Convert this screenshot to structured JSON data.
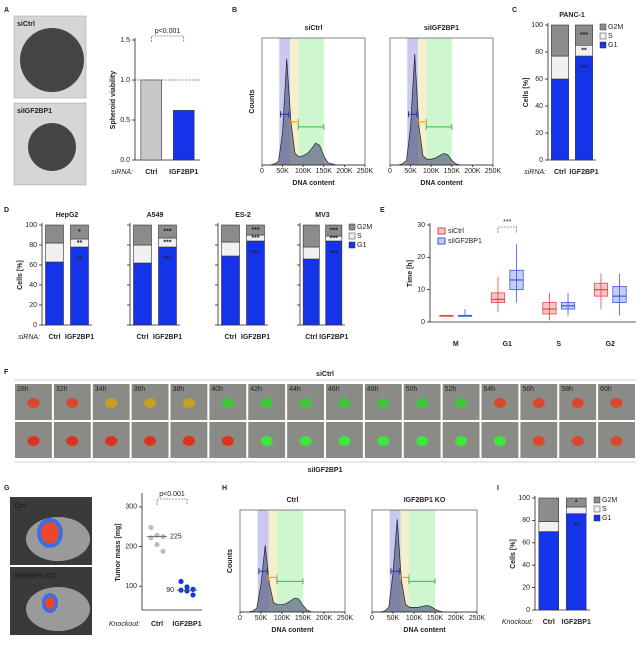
{
  "panel_letters": [
    "A",
    "B",
    "C",
    "D",
    "E",
    "F",
    "G",
    "H",
    "I"
  ],
  "images": {
    "spheroids": [
      "siCtrl",
      "siIGF2BP1"
    ],
    "tumors": [
      "Ctrl",
      "IGF2BP1 KO"
    ]
  },
  "timelapse": {
    "rows": [
      "siCtrl",
      "siIGF2BP1"
    ],
    "times": [
      "28h",
      "32h",
      "34h",
      "36h",
      "38h",
      "40h",
      "42h",
      "44h",
      "46h",
      "48h",
      "50h",
      "52h",
      "54h",
      "56h",
      "58h",
      "60h"
    ]
  },
  "chart_data": [
    {
      "type": "bar",
      "ylabel": "Spheroid viability",
      "xlabel": "siRNA:",
      "categories": [
        "Ctrl",
        "IGF2BP1"
      ],
      "values": [
        1.0,
        0.62
      ],
      "colors": [
        "#c8c8c8",
        "#1533e8"
      ],
      "ylim": [
        0,
        1.5
      ],
      "yticks": [
        {
          "value": 0,
          "label": "0.0"
        },
        {
          "value": 0.5,
          "label": "0.5"
        },
        {
          "value": 1,
          "label": "1.0"
        },
        {
          "value": 1.5,
          "label": "1.5"
        }
      ],
      "refline": 1,
      "annotation": "p<0.001"
    },
    {
      "type": "area",
      "title": "siCtrl",
      "ylabel": "Counts",
      "xlabel": "DNA content",
      "color": "#5d6285",
      "x": [
        0,
        10000,
        20000,
        30000,
        40000,
        50000,
        60000,
        70000,
        80000,
        90000,
        100000,
        110000,
        120000,
        130000,
        140000,
        150000,
        160000,
        170000,
        180000,
        190000,
        200000,
        210000,
        220000,
        230000,
        240000,
        250000
      ],
      "values": [
        0,
        0,
        0,
        1,
        3,
        28,
        92,
        38,
        10,
        7,
        8,
        10,
        14,
        19,
        17,
        8,
        2,
        1,
        0,
        0,
        0,
        0,
        0,
        0,
        0,
        0
      ],
      "xlim": [
        0,
        250000
      ],
      "ylim": [
        0,
        110
      ],
      "xticks": [
        0,
        {
          "value": 50000,
          "label": "50K"
        },
        {
          "value": 100000,
          "label": "100K"
        },
        {
          "value": 150000,
          "label": "150K"
        },
        {
          "value": 200000,
          "label": "200K"
        },
        {
          "value": 250000,
          "label": "250K"
        }
      ]
    },
    {
      "type": "area",
      "title": "siIGF2BP1",
      "xlabel": "DNA content",
      "color": "#5d6285",
      "x": [
        0,
        10000,
        20000,
        30000,
        40000,
        50000,
        60000,
        70000,
        80000,
        90000,
        100000,
        110000,
        120000,
        130000,
        140000,
        150000,
        160000,
        170000,
        180000,
        190000,
        200000,
        210000,
        220000,
        230000,
        240000,
        250000
      ],
      "values": [
        0,
        0,
        0,
        1,
        4,
        33,
        96,
        34,
        8,
        5,
        5,
        6,
        8,
        10,
        9,
        4,
        1,
        0,
        0,
        0,
        0,
        0,
        0,
        0,
        0,
        0
      ],
      "xlim": [
        0,
        250000
      ],
      "ylim": [
        0,
        110
      ],
      "xticks": [
        0,
        {
          "value": 50000,
          "label": "50K"
        },
        {
          "value": 100000,
          "label": "100K"
        },
        {
          "value": 150000,
          "label": "150K"
        },
        {
          "value": 200000,
          "label": "200K"
        },
        {
          "value": 250000,
          "label": "250K"
        }
      ]
    },
    {
      "type": "stacked_bar",
      "title": "PANC-1",
      "ylabel": "Cells [%]",
      "xlabel": "siRNA:",
      "legend": true,
      "categories": [
        "Ctrl",
        "IGF2BP1"
      ],
      "series": [
        {
          "name": "G1",
          "color": "#1533e8",
          "values": [
            60,
            77
          ],
          "stars": [
            null,
            "***"
          ]
        },
        {
          "name": "S",
          "color": "#f0f0f0",
          "values": [
            17,
            8
          ],
          "stars": [
            null,
            "**"
          ]
        },
        {
          "name": "G2M",
          "color": "#8c8c8c",
          "values": [
            23,
            15
          ],
          "stars": [
            null,
            "***"
          ]
        }
      ],
      "ylim": [
        0,
        100
      ],
      "yticks": [
        0,
        20,
        40,
        60,
        80,
        100
      ]
    },
    {
      "type": "stacked_bar",
      "title": "HepG2",
      "ylabel": "Cells [%]",
      "xlabel": "siRNA:",
      "categories": [
        "Ctrl",
        "IGF2BP1"
      ],
      "series": [
        {
          "name": "G1",
          "color": "#1533e8",
          "values": [
            63,
            78
          ],
          "stars": [
            null,
            "**"
          ]
        },
        {
          "name": "S",
          "color": "#f0f0f0",
          "values": [
            19,
            8
          ],
          "stars": [
            null,
            "**"
          ]
        },
        {
          "name": "G2M",
          "color": "#8c8c8c",
          "values": [
            18,
            14
          ],
          "stars": [
            null,
            "*"
          ]
        }
      ],
      "ylim": [
        0,
        100
      ],
      "yticks": [
        0,
        20,
        40,
        60,
        80,
        100
      ]
    },
    {
      "type": "stacked_bar",
      "title": "A549",
      "ytick_labels": false,
      "categories": [
        "Ctrl",
        "IGF2BP1"
      ],
      "series": [
        {
          "name": "G1",
          "color": "#1533e8",
          "values": [
            62,
            78
          ],
          "stars": [
            null,
            "***"
          ]
        },
        {
          "name": "S",
          "color": "#f0f0f0",
          "values": [
            18,
            9
          ],
          "stars": [
            null,
            "***"
          ]
        },
        {
          "name": "G2M",
          "color": "#8c8c8c",
          "values": [
            20,
            13
          ],
          "stars": [
            null,
            "***"
          ]
        }
      ],
      "ylim": [
        0,
        100
      ],
      "yticks": [
        0,
        20,
        40,
        60,
        80,
        100
      ]
    },
    {
      "type": "stacked_bar",
      "title": "ES-2",
      "ytick_labels": false,
      "categories": [
        "Ctrl",
        "IGF2BP1"
      ],
      "series": [
        {
          "name": "G1",
          "color": "#1533e8",
          "values": [
            69,
            84
          ],
          "stars": [
            null,
            "***"
          ]
        },
        {
          "name": "S",
          "color": "#f0f0f0",
          "values": [
            14,
            6
          ],
          "stars": [
            null,
            "***"
          ]
        },
        {
          "name": "G2M",
          "color": "#8c8c8c",
          "values": [
            17,
            10
          ],
          "stars": [
            null,
            "***"
          ]
        }
      ],
      "ylim": [
        0,
        100
      ],
      "yticks": [
        0,
        20,
        40,
        60,
        80,
        100
      ]
    },
    {
      "type": "stacked_bar",
      "title": "MV3",
      "ytick_labels": false,
      "legend": true,
      "categories": [
        "Ctrl",
        "IGF2BP1"
      ],
      "series": [
        {
          "name": "G1",
          "color": "#1533e8",
          "values": [
            66,
            84
          ],
          "stars": [
            null,
            "***"
          ]
        },
        {
          "name": "S",
          "color": "#f0f0f0",
          "values": [
            12,
            5
          ],
          "stars": [
            null,
            "***"
          ]
        },
        {
          "name": "G2M",
          "color": "#8c8c8c",
          "values": [
            22,
            11
          ],
          "stars": [
            null,
            "***"
          ]
        }
      ],
      "ylim": [
        0,
        100
      ],
      "yticks": [
        0,
        20,
        40,
        60,
        80,
        100
      ]
    },
    {
      "type": "box",
      "ylabel": "Time [h]",
      "categories": [
        "M",
        "G1",
        "S",
        "G2"
      ],
      "series": [
        {
          "name": "siCtrl",
          "color": "#e2474a",
          "stats": [
            [
              2,
              2,
              2,
              2,
              2
            ],
            [
              3,
              6,
              7,
              9,
              14
            ],
            [
              0.5,
              2.5,
              4,
              6,
              9
            ],
            [
              4,
              8,
              10,
              12,
              15
            ]
          ]
        },
        {
          "name": "siIGF2BP1",
          "color": "#3a5be0",
          "stats": [
            [
              2,
              2,
              2,
              2,
              4
            ],
            [
              6,
              10,
              13,
              16,
              24
            ],
            [
              2,
              4,
              5,
              6,
              9
            ],
            [
              2,
              6,
              8,
              11,
              15
            ]
          ]
        }
      ],
      "ylim": [
        0,
        30
      ],
      "yticks": [
        0,
        10,
        20,
        30
      ],
      "annotation": "***"
    },
    {
      "type": "strip",
      "ylabel": "Tumor mass [mg]",
      "xlabel": "Knockout:",
      "categories": [
        "Ctrl",
        "IGF2BP1"
      ],
      "colors": [
        "#bdbdbd",
        "#1533e8"
      ],
      "points": [
        [
          248,
          228,
          225,
          222,
          205,
          188
        ],
        [
          112,
          98,
          92,
          90,
          88,
          78
        ]
      ],
      "values": [
        225,
        90
      ],
      "ylim": [
        40,
        330
      ],
      "yticks": [
        100,
        200,
        300
      ],
      "annotation": "p<0.001"
    },
    {
      "type": "area",
      "title": "Ctrl",
      "ylabel": "Counts",
      "xlabel": "DNA content",
      "color": "#5d6285",
      "x": [
        0,
        10000,
        20000,
        30000,
        40000,
        50000,
        60000,
        70000,
        80000,
        90000,
        100000,
        110000,
        120000,
        130000,
        140000,
        150000,
        160000,
        170000,
        180000,
        190000,
        200000,
        210000,
        220000,
        230000,
        240000,
        250000
      ],
      "values": [
        0,
        0,
        0,
        1,
        4,
        30,
        72,
        30,
        10,
        8,
        8,
        9,
        12,
        15,
        14,
        7,
        2,
        0,
        0,
        0,
        0,
        0,
        0,
        0,
        0,
        0
      ],
      "xlim": [
        0,
        250000
      ],
      "ylim": [
        0,
        110
      ],
      "xticks": [
        0,
        {
          "value": 50000,
          "label": "50K"
        },
        {
          "value": 100000,
          "label": "100K"
        },
        {
          "value": 150000,
          "label": "150K"
        },
        {
          "value": 200000,
          "label": "200K"
        },
        {
          "value": 250000,
          "label": "250K"
        }
      ]
    },
    {
      "type": "area",
      "title": "IGF2BP1 KO",
      "xlabel": "DNA content",
      "color": "#5d6285",
      "x": [
        0,
        10000,
        20000,
        30000,
        40000,
        50000,
        60000,
        70000,
        80000,
        90000,
        100000,
        110000,
        120000,
        130000,
        140000,
        150000,
        160000,
        170000,
        180000,
        190000,
        200000,
        210000,
        220000,
        230000,
        240000,
        250000
      ],
      "values": [
        0,
        0,
        0,
        1,
        5,
        42,
        100,
        34,
        8,
        5,
        5,
        5,
        6,
        7,
        6,
        3,
        1,
        0,
        0,
        0,
        0,
        0,
        0,
        0,
        0,
        0
      ],
      "xlim": [
        0,
        250000
      ],
      "ylim": [
        0,
        110
      ],
      "xticks": [
        0,
        {
          "value": 50000,
          "label": "50K"
        },
        {
          "value": 100000,
          "label": "100K"
        },
        {
          "value": 150000,
          "label": "150K"
        },
        {
          "value": 200000,
          "label": "200K"
        },
        {
          "value": 250000,
          "label": "250K"
        }
      ]
    },
    {
      "type": "stacked_bar",
      "ylabel": "Cells [%]",
      "xlabel": "Knockout:",
      "legend": true,
      "categories": [
        "Ctrl",
        "IGF2BP1"
      ],
      "series": [
        {
          "name": "G1",
          "color": "#1533e8",
          "values": [
            70,
            86
          ],
          "stars": [
            null,
            "**"
          ]
        },
        {
          "name": "S",
          "color": "#f0f0f0",
          "values": [
            9,
            6
          ],
          "stars": [
            null,
            null
          ]
        },
        {
          "name": "G2M",
          "color": "#8c8c8c",
          "values": [
            21,
            8
          ],
          "stars": [
            null,
            "*"
          ]
        }
      ],
      "ylim": [
        0,
        100
      ],
      "yticks": [
        0,
        20,
        40,
        60,
        80,
        100
      ]
    }
  ]
}
